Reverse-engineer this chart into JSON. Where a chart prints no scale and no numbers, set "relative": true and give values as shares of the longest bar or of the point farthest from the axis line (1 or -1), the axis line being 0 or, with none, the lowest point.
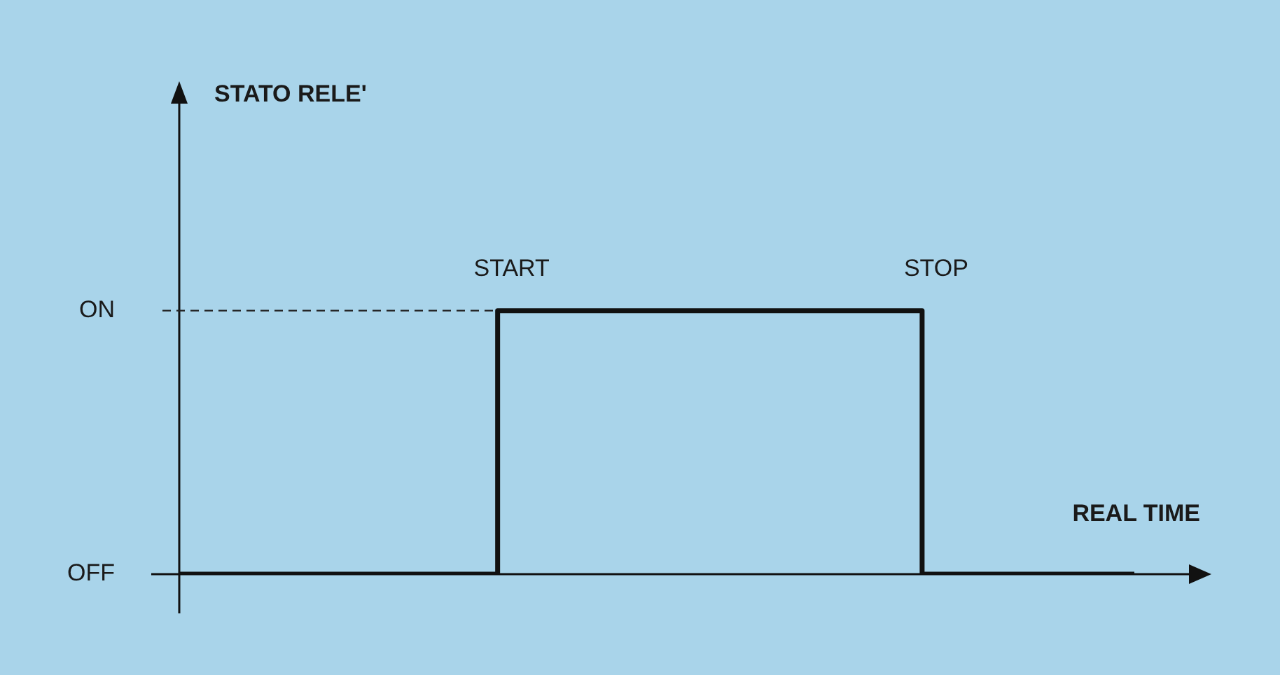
{
  "chart_data": {
    "type": "step",
    "xlabel": "REAL TIME",
    "categories": [
      null,
      null,
      null,
      null,
      null,
      null,
      null,
      null,
      null,
      null
    ],
    "values": [
      0,
      0,
      0,
      1,
      1,
      1,
      1,
      0,
      0,
      0
    ],
    "color": "#111111",
    "relative": true,
    "annotations": [
      "START",
      "STOP",
      "ON",
      "OFF",
      "STATO RELE'"
    ],
    "ref_lines": [
      {
        "axis": "y",
        "value": 1,
        "line_style": "dashed",
        "color": "#222222"
      }
    ],
    "marker": "none",
    "line_style": "solid",
    "grid": false,
    "legend": false
  }
}
